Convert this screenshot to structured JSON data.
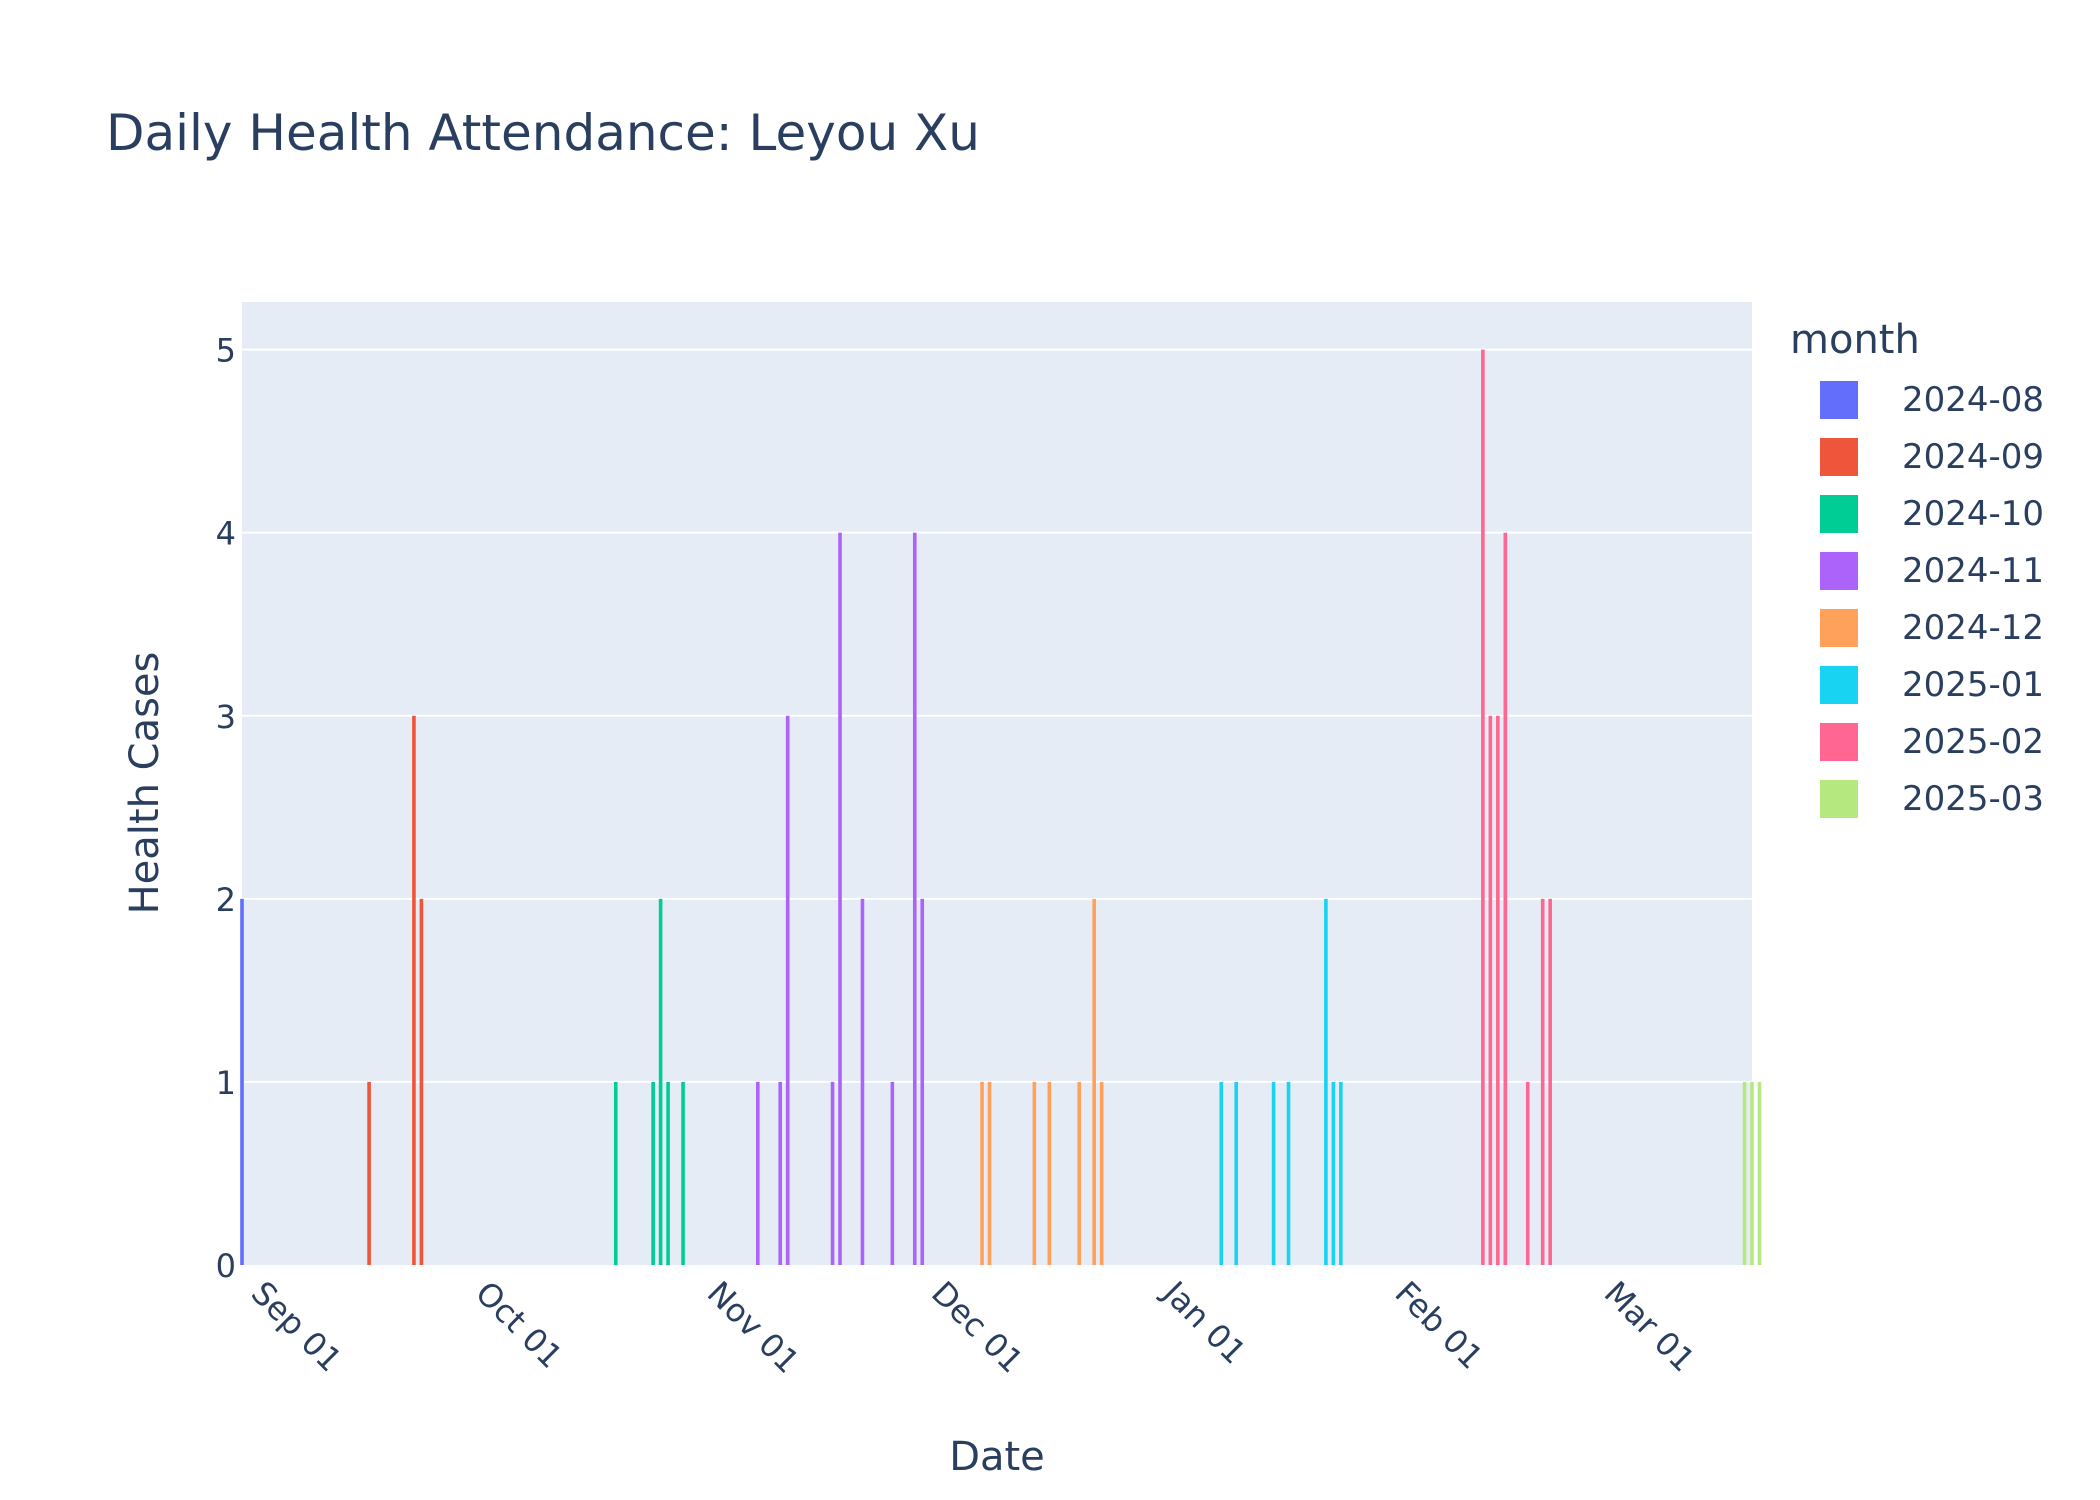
{
  "chart_data": {
    "type": "bar",
    "title": "Daily Health Attendance: Leyou Xu",
    "xlabel": "Date",
    "ylabel": "Health Cases",
    "ylim": [
      0,
      5.26
    ],
    "xlim": [
      "2024-08-31",
      "2025-03-21"
    ],
    "yticks": [
      0,
      1,
      2,
      3,
      4,
      5
    ],
    "xticks": [
      {
        "date": "2024-09-01",
        "label": "Sep 01"
      },
      {
        "date": "2024-10-01",
        "label": "Oct 01"
      },
      {
        "date": "2024-11-01",
        "label": "Nov 01"
      },
      {
        "date": "2024-12-01",
        "label": "Dec 01"
      },
      {
        "date": "2025-01-01",
        "label": "Jan 01"
      },
      {
        "date": "2025-02-01",
        "label": "Feb 01"
      },
      {
        "date": "2025-03-01",
        "label": "Mar 01"
      }
    ],
    "grid": true,
    "legend_title": "month",
    "legend_position": "right",
    "series": [
      {
        "name": "2024-08",
        "color": "#636efa",
        "points": [
          [
            "2024-08-31",
            2
          ]
        ]
      },
      {
        "name": "2024-09",
        "color": "#EF553B",
        "points": [
          [
            "2024-09-17",
            1
          ],
          [
            "2024-09-23",
            3
          ],
          [
            "2024-09-24",
            2
          ]
        ]
      },
      {
        "name": "2024-10",
        "color": "#00cc96",
        "points": [
          [
            "2024-10-20",
            1
          ],
          [
            "2024-10-25",
            1
          ],
          [
            "2024-10-26",
            2
          ],
          [
            "2024-10-27",
            1
          ],
          [
            "2024-10-29",
            1
          ]
        ]
      },
      {
        "name": "2024-11",
        "color": "#ab63fa",
        "points": [
          [
            "2024-11-08",
            1
          ],
          [
            "2024-11-11",
            1
          ],
          [
            "2024-11-12",
            3
          ],
          [
            "2024-11-18",
            1
          ],
          [
            "2024-11-19",
            4
          ],
          [
            "2024-11-22",
            2
          ],
          [
            "2024-11-26",
            1
          ],
          [
            "2024-11-29",
            4
          ],
          [
            "2024-11-30",
            2
          ]
        ]
      },
      {
        "name": "2024-12",
        "color": "#FFA15A",
        "points": [
          [
            "2024-12-08",
            1
          ],
          [
            "2024-12-09",
            1
          ],
          [
            "2024-12-15",
            1
          ],
          [
            "2024-12-17",
            1
          ],
          [
            "2024-12-21",
            1
          ],
          [
            "2024-12-23",
            2
          ],
          [
            "2024-12-24",
            1
          ]
        ]
      },
      {
        "name": "2025-01",
        "color": "#19d3f3",
        "points": [
          [
            "2025-01-09",
            1
          ],
          [
            "2025-01-11",
            1
          ],
          [
            "2025-01-16",
            1
          ],
          [
            "2025-01-18",
            1
          ],
          [
            "2025-01-23",
            2
          ],
          [
            "2025-01-24",
            1
          ],
          [
            "2025-01-25",
            1
          ]
        ]
      },
      {
        "name": "2025-02",
        "color": "#FF6692",
        "points": [
          [
            "2025-02-13",
            5
          ],
          [
            "2025-02-14",
            3
          ],
          [
            "2025-02-15",
            3
          ],
          [
            "2025-02-16",
            4
          ],
          [
            "2025-02-19",
            1
          ],
          [
            "2025-02-21",
            2
          ],
          [
            "2025-02-22",
            2
          ]
        ]
      },
      {
        "name": "2025-03",
        "color": "#B6E880",
        "points": [
          [
            "2025-03-20",
            1
          ],
          [
            "2025-03-21",
            1
          ],
          [
            "2025-03-22",
            1
          ]
        ]
      }
    ]
  }
}
